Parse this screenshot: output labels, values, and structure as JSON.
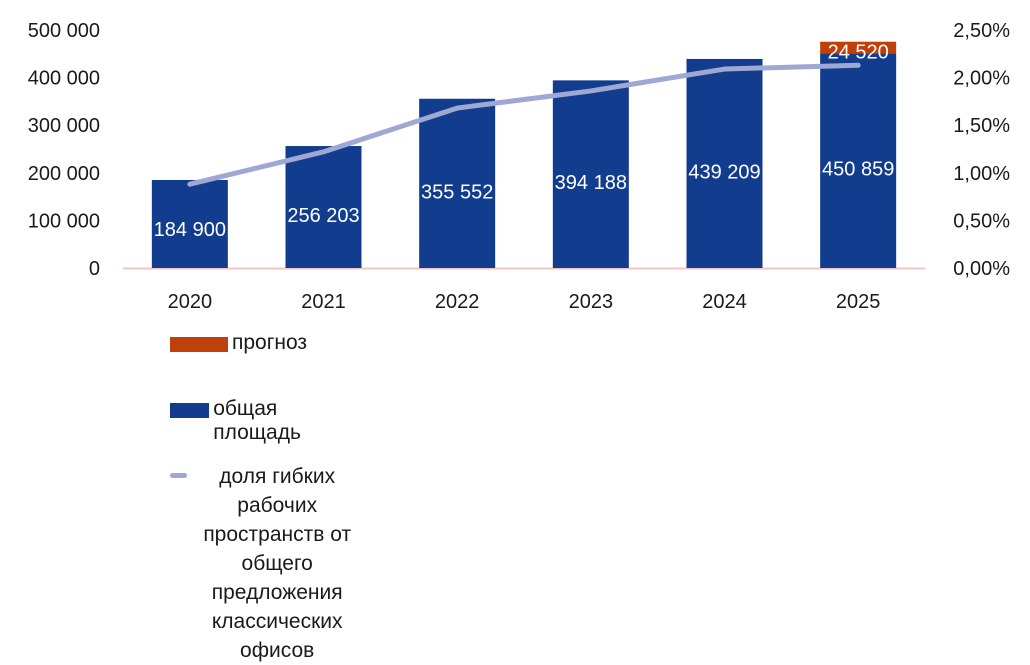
{
  "chart_data": {
    "type": "bar",
    "categories": [
      "2020",
      "2021",
      "2022",
      "2023",
      "2024",
      "2025"
    ],
    "series": [
      {
        "name": "общая площадь",
        "kind": "bar",
        "axis": "left",
        "color": "#123d8f",
        "values": [
          184900,
          256203,
          355552,
          394188,
          439209,
          450859
        ],
        "labels": [
          "184 900",
          "256 203",
          "355 552",
          "394 188",
          "439 209",
          "450 859"
        ]
      },
      {
        "name": "прогноз",
        "kind": "bar-stacked",
        "axis": "left",
        "color": "#c0400a",
        "values": [
          null,
          null,
          null,
          null,
          null,
          24520
        ],
        "labels": [
          "",
          "",
          "",
          "",
          "",
          "24 520"
        ]
      },
      {
        "name": "доля гибких рабочих пространств от общего предложения классических офисов",
        "kind": "line",
        "axis": "right",
        "color": "#9fa8d3",
        "values": [
          0.88,
          1.22,
          1.68,
          1.86,
          2.09,
          2.13
        ]
      }
    ],
    "y_left": {
      "ylim": [
        0,
        500000
      ],
      "ticks": [
        0,
        100000,
        200000,
        300000,
        400000,
        500000
      ],
      "tick_labels": [
        "0",
        "100 000",
        "200 000",
        "300 000",
        "400 000",
        "500 000"
      ]
    },
    "y_right": {
      "ylim": [
        0,
        2.5
      ],
      "unit": "%",
      "ticks": [
        0,
        0.5,
        1.0,
        1.5,
        2.0,
        2.5
      ],
      "tick_labels": [
        "0,00%",
        "0,50%",
        "1,00%",
        "1,50%",
        "2,00%",
        "2,50%"
      ]
    },
    "legend_position": "bottom",
    "grid": false
  },
  "legend": {
    "forecast": "прогноз",
    "total_area": "общая площадь",
    "share_line1": "доля гибких рабочих пространств от общего предложения",
    "share_line2": "классических офисов"
  }
}
